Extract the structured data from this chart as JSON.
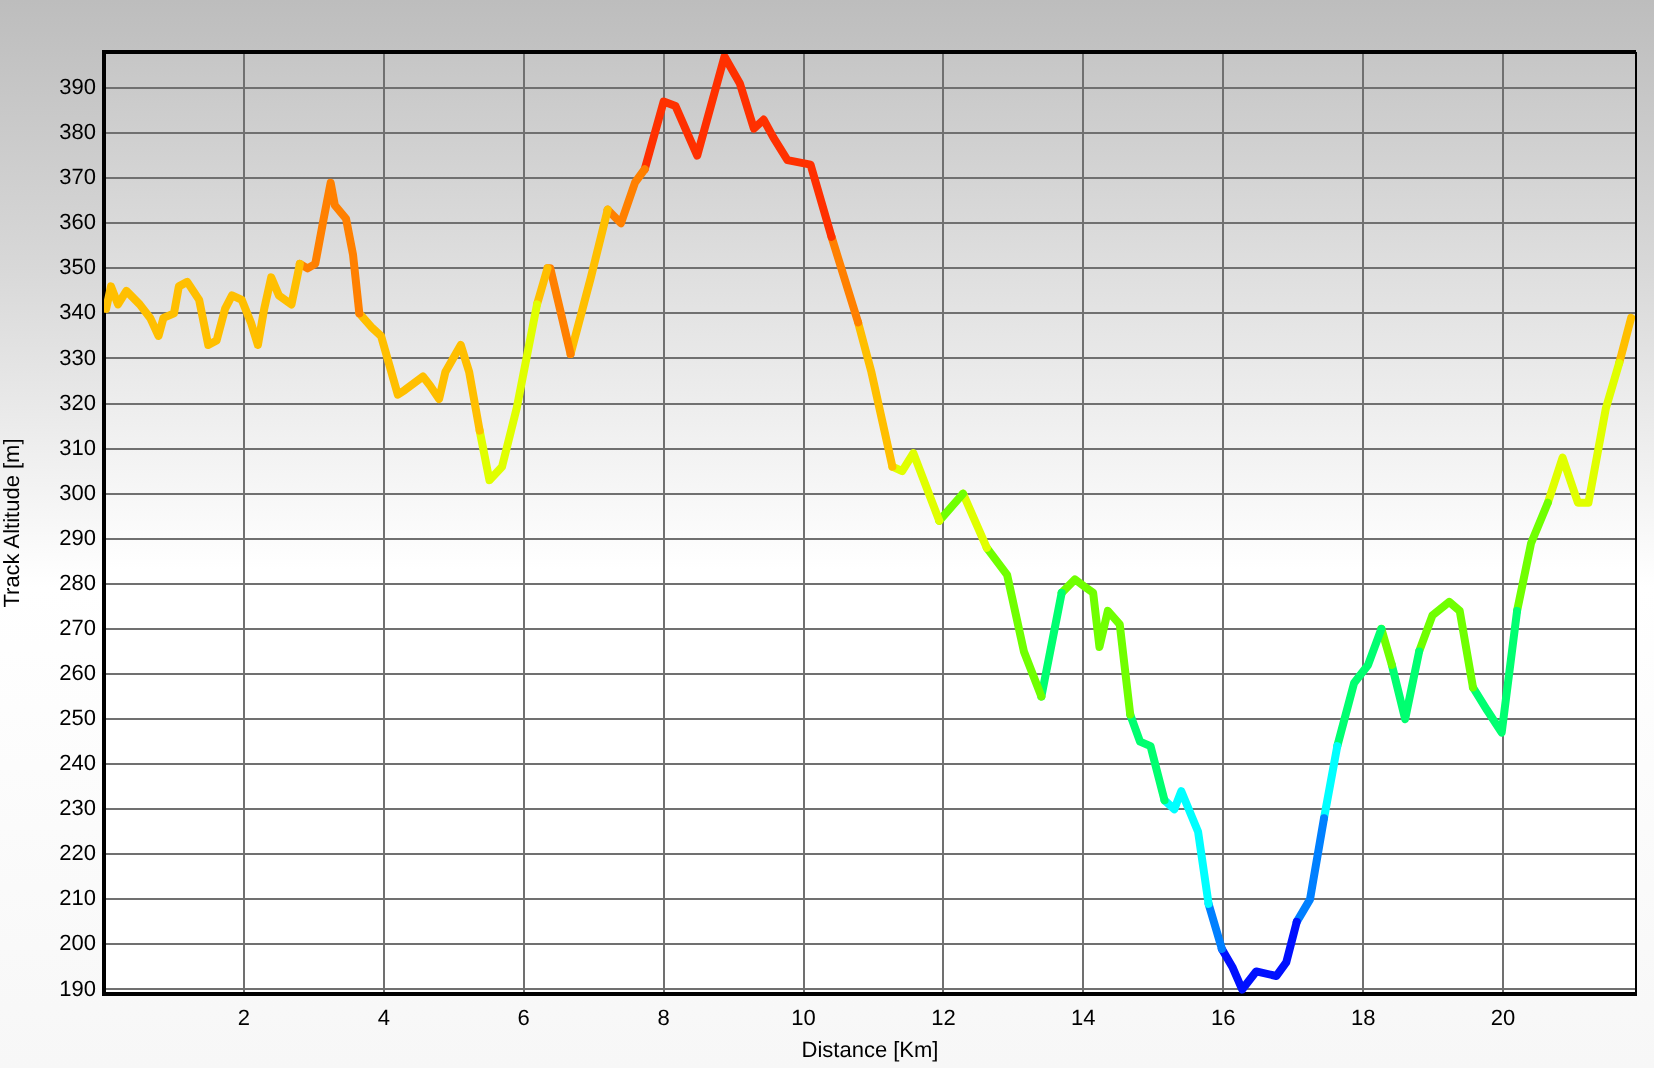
{
  "chart_data": {
    "type": "line",
    "xlabel": "Distance [Km]",
    "ylabel": "Track Altitude [m]",
    "xlim": [
      0,
      21.9
    ],
    "xticks": [
      2,
      4,
      6,
      8,
      10,
      12,
      14,
      16,
      18,
      20
    ],
    "ylim": [
      189,
      398
    ],
    "yticks": [
      190,
      200,
      210,
      220,
      230,
      240,
      250,
      260,
      270,
      280,
      290,
      300,
      310,
      320,
      330,
      340,
      350,
      360,
      370,
      380,
      390
    ],
    "grid": true,
    "legend": false,
    "marker": "none",
    "line_style": "solid",
    "series": [
      {
        "color": "#ffbf00",
        "x": [
          0.03,
          0.1,
          0.2,
          0.32,
          0.51,
          0.66,
          0.78,
          0.85,
          1.0,
          1.07,
          1.19,
          1.36,
          1.49,
          1.61,
          1.73,
          1.83,
          1.97,
          2.1,
          2.2,
          2.29,
          2.39,
          2.5,
          2.68,
          2.8
        ],
        "values": [
          341,
          346,
          342,
          345,
          342,
          339,
          335,
          339,
          340,
          346,
          347,
          343,
          333,
          334,
          341,
          344,
          343,
          338,
          333,
          341,
          348,
          344,
          342,
          351
        ]
      },
      {
        "color": "#ff8000",
        "x": [
          2.8,
          2.91,
          3.02,
          3.14,
          3.24,
          3.3,
          3.46,
          3.56,
          3.65
        ],
        "values": [
          351,
          350,
          351,
          361,
          369,
          364,
          361,
          353,
          340
        ]
      },
      {
        "color": "#ffbf00",
        "x": [
          3.65,
          3.82,
          3.96,
          4.2,
          4.3,
          4.56,
          4.66,
          4.79,
          4.88,
          5.1,
          5.22,
          5.37
        ],
        "values": [
          340,
          337,
          335,
          322,
          323,
          326,
          324,
          321,
          327,
          333,
          327,
          314
        ]
      },
      {
        "color": "#e0ff00",
        "x": [
          5.37,
          5.51,
          5.69,
          5.9,
          6.19
        ],
        "values": [
          314,
          303,
          306,
          319,
          342
        ]
      },
      {
        "color": "#ffbf00",
        "x": [
          6.19,
          6.34
        ],
        "values": [
          342,
          350
        ]
      },
      {
        "color": "#ff8000",
        "x": [
          6.34,
          6.38,
          6.67
        ],
        "values": [
          350,
          350,
          331
        ]
      },
      {
        "color": "#ffbf00",
        "x": [
          6.67,
          6.96,
          7.2
        ],
        "values": [
          331,
          348,
          363
        ]
      },
      {
        "color": "#ff8000",
        "x": [
          7.2,
          7.39,
          7.59,
          7.73
        ],
        "values": [
          363,
          360,
          369,
          372
        ]
      },
      {
        "color": "#ff3000",
        "x": [
          7.73,
          8.0,
          8.17,
          8.48,
          8.87,
          9.09,
          9.29,
          9.43,
          9.57,
          9.77,
          10.1,
          10.4
        ],
        "values": [
          372,
          387,
          386,
          375,
          397,
          391,
          381,
          383,
          379,
          374,
          373,
          357
        ]
      },
      {
        "color": "#ff8000",
        "x": [
          10.4,
          10.78
        ],
        "values": [
          357,
          338
        ]
      },
      {
        "color": "#ffbf00",
        "x": [
          10.78,
          10.97,
          11.27
        ],
        "values": [
          338,
          327,
          306
        ]
      },
      {
        "color": "#e0ff00",
        "x": [
          11.27,
          11.41,
          11.57,
          11.94
        ],
        "values": [
          306,
          305,
          309,
          294
        ]
      },
      {
        "color": "#70ff00",
        "x": [
          11.94,
          12.28
        ],
        "values": [
          294,
          300
        ]
      },
      {
        "color": "#e0ff00",
        "x": [
          12.28,
          12.62
        ],
        "values": [
          300,
          288
        ]
      },
      {
        "color": "#70ff00",
        "x": [
          12.62,
          12.91,
          13.15,
          13.4
        ],
        "values": [
          288,
          282,
          265,
          255
        ]
      },
      {
        "color": "#00ff70",
        "x": [
          13.4,
          13.69
        ],
        "values": [
          255,
          278
        ]
      },
      {
        "color": "#70ff00",
        "x": [
          13.69,
          13.88,
          14.05,
          14.14,
          14.23,
          14.35,
          14.52,
          14.67
        ],
        "values": [
          278,
          281,
          279,
          278,
          266,
          274,
          271,
          251
        ]
      },
      {
        "color": "#00ff70",
        "x": [
          14.67,
          14.81,
          14.96,
          15.16
        ],
        "values": [
          251,
          245,
          244,
          232
        ]
      },
      {
        "color": "#00ffff",
        "x": [
          15.16,
          15.3,
          15.4,
          15.64,
          15.79
        ],
        "values": [
          232,
          230,
          234,
          225,
          209
        ]
      },
      {
        "color": "#0080ff",
        "x": [
          15.79,
          15.98
        ],
        "values": [
          209,
          199
        ]
      },
      {
        "color": "#0010ff",
        "x": [
          15.98,
          16.13,
          16.27,
          16.47,
          16.76,
          16.9,
          17.05
        ],
        "values": [
          199,
          195,
          190,
          194,
          193,
          196,
          205
        ]
      },
      {
        "color": "#0080ff",
        "x": [
          17.05,
          17.24,
          17.44
        ],
        "values": [
          205,
          210,
          228
        ]
      },
      {
        "color": "#00ffff",
        "x": [
          17.44,
          17.63
        ],
        "values": [
          228,
          244
        ]
      },
      {
        "color": "#00ff70",
        "x": [
          17.63,
          17.87,
          18.07,
          18.26
        ],
        "values": [
          244,
          258,
          262,
          270
        ]
      },
      {
        "color": "#70ff00",
        "x": [
          18.26,
          18.41
        ],
        "values": [
          270,
          262
        ]
      },
      {
        "color": "#00ff70",
        "x": [
          18.41,
          18.6,
          18.8
        ],
        "values": [
          262,
          250,
          265
        ]
      },
      {
        "color": "#70ff00",
        "x": [
          18.8,
          18.99,
          19.23,
          19.38,
          19.57
        ],
        "values": [
          265,
          273,
          276,
          274,
          257
        ]
      },
      {
        "color": "#00ff70",
        "x": [
          19.57,
          19.77,
          19.98,
          20.2
        ],
        "values": [
          257,
          252,
          247,
          274
        ]
      },
      {
        "color": "#70ff00",
        "x": [
          20.2,
          20.4,
          20.64
        ],
        "values": [
          274,
          289,
          298
        ]
      },
      {
        "color": "#e0ff00",
        "x": [
          20.64,
          20.85,
          21.07,
          21.22,
          21.47,
          21.66
        ],
        "values": [
          298,
          308,
          298,
          298,
          319,
          329
        ]
      },
      {
        "color": "#ffbf00",
        "x": [
          21.66,
          21.83
        ],
        "values": [
          329,
          339
        ]
      }
    ]
  }
}
